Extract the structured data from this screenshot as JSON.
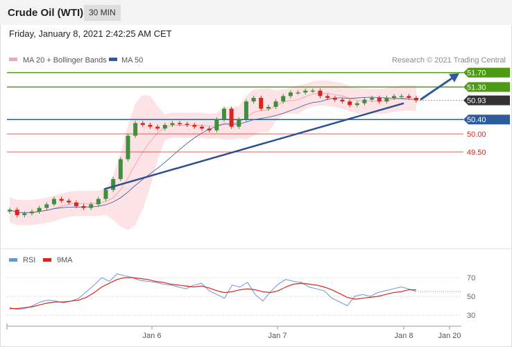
{
  "header": {
    "title": "Crude Oil (WTI)",
    "timeframe": "30 MIN"
  },
  "datetime": "Friday, January 8, 2021 2:42:25 AM CET",
  "copyright": "Research © 2021 Trading Central",
  "colors": {
    "support": "#2e5b9a",
    "resistance": "#4d9a14",
    "bollinger": "#fde3e5",
    "ma20": "#f3a6ab",
    "ma50": "#2e5b9a",
    "rsi": "#6b93d6",
    "rsi_ma": "#d9261c"
  },
  "chart_data": [
    {
      "type": "candlestick",
      "title": "Crude Oil (WTI)",
      "timeframe": "30 MIN",
      "x_tick_labels": [
        "Jan 6",
        "Jan 7",
        "Jan 8",
        "Jan 20"
      ],
      "legend": [
        "MA 20 + Bollinger Bands",
        "MA 50"
      ],
      "legend_position": "top-left",
      "y_range": [
        48.8,
        52.0
      ],
      "levels": [
        {
          "label": "51.70",
          "value": 51.7,
          "kind": "resistance"
        },
        {
          "label": "51.30",
          "value": 51.3,
          "kind": "resistance"
        },
        {
          "label": "50.93",
          "value": 50.93,
          "kind": "last"
        },
        {
          "label": "50.40",
          "value": 50.4,
          "kind": "support"
        },
        {
          "label": "50.00",
          "value": 50.0,
          "kind": "minor"
        },
        {
          "label": "49.50",
          "value": 49.5,
          "kind": "minor"
        }
      ],
      "trendline": {
        "from": {
          "x": "Jan 5 22:00",
          "y": 48.47
        },
        "to": {
          "x": "Jan 8 02:00",
          "y": 50.85
        }
      },
      "forecast_arrow": {
        "from": {
          "x": "Jan 8 02:30",
          "y": 50.95
        },
        "to": {
          "x": "Jan 8 10:00",
          "y": 51.68
        }
      },
      "close_series": [
        47.9,
        47.75,
        47.8,
        47.85,
        47.95,
        48.05,
        48.2,
        48.15,
        48.1,
        48.0,
        47.95,
        48.05,
        48.2,
        48.45,
        48.75,
        49.3,
        49.95,
        50.3,
        50.25,
        50.2,
        50.15,
        50.25,
        50.3,
        50.28,
        50.25,
        50.2,
        50.15,
        50.1,
        50.4,
        50.7,
        50.2,
        50.4,
        50.9,
        51.0,
        50.7,
        50.75,
        50.9,
        51.05,
        51.15,
        51.15,
        51.2,
        51.2,
        51.05,
        51.0,
        50.95,
        50.9,
        50.8,
        50.85,
        50.95,
        51.0,
        50.9,
        51.0,
        51.05,
        51.05,
        51.0,
        50.93
      ]
    },
    {
      "type": "line",
      "legend": [
        "RSI",
        "9MA"
      ],
      "legend_position": "top-left",
      "y_ticks": [
        70,
        50,
        30
      ],
      "y_range": [
        20,
        80
      ],
      "rsi": [
        38,
        36,
        37,
        40,
        44,
        46,
        45,
        43,
        45,
        48,
        55,
        62,
        70,
        66,
        74,
        72,
        70,
        67,
        66,
        65,
        63,
        62,
        60,
        58,
        62,
        64,
        56,
        52,
        48,
        62,
        60,
        65,
        52,
        45,
        55,
        63,
        68,
        66,
        65,
        60,
        58,
        56,
        48,
        44,
        40,
        50,
        52,
        50,
        54,
        56,
        58,
        60,
        58,
        55
      ],
      "rsi_ma": [
        37,
        37,
        38,
        39,
        41,
        43,
        44,
        44,
        45,
        46,
        49,
        54,
        60,
        64,
        68,
        70,
        70,
        69,
        68,
        66,
        65,
        63,
        62,
        61,
        60,
        61,
        59,
        56,
        54,
        55,
        57,
        58,
        57,
        55,
        54,
        56,
        60,
        63,
        64,
        63,
        62,
        60,
        57,
        53,
        49,
        47,
        48,
        49,
        50,
        52,
        54,
        55,
        57,
        57
      ]
    }
  ]
}
